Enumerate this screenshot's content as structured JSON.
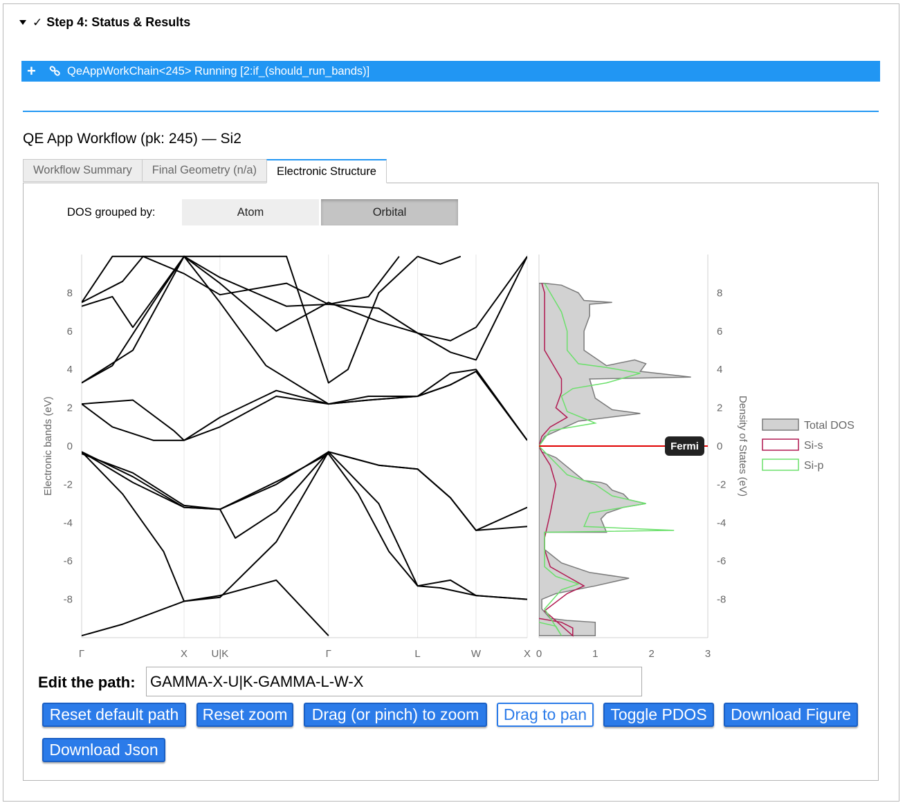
{
  "step": {
    "title": "Step 4: Status & Results",
    "check": "✓"
  },
  "workchain_bar": {
    "plus": "+",
    "text": "QeAppWorkChain<245> Running [2:if_(should_run_bands)]"
  },
  "workflow_title": "QE App Workflow (pk: 245) — Si2",
  "tabs": [
    {
      "label": "Workflow Summary",
      "active": false
    },
    {
      "label": "Final Geometry (n/a)",
      "active": false
    },
    {
      "label": "Electronic Structure",
      "active": true
    }
  ],
  "dos_group": {
    "label": "DOS grouped by:",
    "options": [
      "Atom",
      "Orbital"
    ],
    "selected": "Orbital"
  },
  "chart_data": [
    {
      "type": "line",
      "ylabel": "Electronic bands (eV)",
      "ylim": [
        -10,
        10
      ],
      "y_ticks": [
        8,
        6,
        4,
        2,
        0,
        -2,
        -4,
        -6,
        -8
      ],
      "x_ticks": [
        "Γ",
        "X",
        "U|K",
        "Γ",
        "L",
        "W",
        "X"
      ],
      "x_tick_positions": [
        0,
        1.0,
        1.35,
        2.41,
        3.28,
        3.85,
        4.35
      ],
      "series_color": "#000000",
      "bands": [
        [
          [
            0,
            -9.9
          ],
          [
            0.4,
            -9.3
          ],
          [
            1.0,
            -8.1
          ],
          [
            1.35,
            -7.8
          ],
          [
            1.9,
            -7.0
          ],
          [
            2.41,
            -9.9
          ]
        ],
        [
          [
            0,
            -0.3
          ],
          [
            0.5,
            -1.9
          ],
          [
            1.0,
            -3.2
          ],
          [
            1.35,
            -3.3
          ],
          [
            1.9,
            -2.0
          ],
          [
            2.41,
            -0.3
          ],
          [
            2.9,
            -1.0
          ],
          [
            3.28,
            -1.2
          ],
          [
            3.6,
            -2.7
          ],
          [
            3.85,
            -4.4
          ],
          [
            4.35,
            -4.2
          ]
        ],
        [
          [
            0,
            -0.3
          ],
          [
            0.4,
            -2.5
          ],
          [
            0.8,
            -5.5
          ],
          [
            1.0,
            -8.1
          ],
          [
            1.35,
            -7.9
          ],
          [
            1.9,
            -5.0
          ],
          [
            2.41,
            -0.3
          ],
          [
            2.9,
            -3.0
          ],
          [
            3.28,
            -7.3
          ],
          [
            3.6,
            -7.0
          ],
          [
            3.85,
            -7.8
          ],
          [
            4.35,
            -8.0
          ]
        ],
        [
          [
            0,
            -0.3
          ],
          [
            0.5,
            -1.6
          ],
          [
            1.0,
            -3.2
          ],
          [
            1.35,
            -3.3
          ],
          [
            1.5,
            -4.8
          ],
          [
            1.9,
            -3.4
          ],
          [
            2.41,
            -0.3
          ],
          [
            2.9,
            -1.0
          ],
          [
            3.28,
            -1.2
          ],
          [
            3.6,
            -2.7
          ],
          [
            3.85,
            -4.4
          ],
          [
            4.35,
            -3.2
          ]
        ],
        [
          [
            0,
            -0.4
          ],
          [
            0.5,
            -1.4
          ],
          [
            1.0,
            -3.1
          ],
          [
            1.35,
            -3.3
          ],
          [
            2.0,
            -1.6
          ],
          [
            2.41,
            -0.4
          ],
          [
            2.7,
            -2.5
          ],
          [
            3.0,
            -5.5
          ],
          [
            3.28,
            -7.3
          ],
          [
            3.5,
            -7.4
          ],
          [
            3.85,
            -7.8
          ],
          [
            4.35,
            -8.0
          ]
        ],
        [
          [
            0,
            2.2
          ],
          [
            0.3,
            1.0
          ],
          [
            0.7,
            0.3
          ],
          [
            1.0,
            0.3
          ],
          [
            1.35,
            1.0
          ],
          [
            1.9,
            2.6
          ],
          [
            2.41,
            2.2
          ],
          [
            2.8,
            2.4
          ],
          [
            3.28,
            2.6
          ],
          [
            3.6,
            3.2
          ],
          [
            3.85,
            3.9
          ],
          [
            4.35,
            0.3
          ]
        ],
        [
          [
            0,
            2.2
          ],
          [
            0.5,
            2.4
          ],
          [
            0.9,
            0.8
          ],
          [
            1.0,
            0.3
          ],
          [
            1.35,
            1.5
          ],
          [
            1.9,
            2.9
          ],
          [
            2.41,
            2.2
          ],
          [
            2.8,
            2.4
          ],
          [
            3.28,
            2.6
          ],
          [
            3.6,
            3.2
          ],
          [
            3.85,
            3.9
          ],
          [
            4.35,
            0.3
          ]
        ],
        [
          [
            0,
            3.3
          ],
          [
            0.3,
            4.2
          ],
          [
            0.7,
            7.5
          ],
          [
            1.0,
            9.9
          ],
          [
            1.35,
            7.5
          ],
          [
            1.8,
            4.2
          ],
          [
            2.41,
            2.2
          ],
          [
            2.8,
            2.6
          ],
          [
            3.28,
            2.6
          ],
          [
            3.6,
            3.8
          ],
          [
            3.85,
            4.0
          ],
          [
            4.35,
            0.3
          ]
        ],
        [
          [
            0,
            3.3
          ],
          [
            0.5,
            5.0
          ],
          [
            1.0,
            9.9
          ],
          [
            1.35,
            8.5
          ],
          [
            1.9,
            6.0
          ],
          [
            2.41,
            7.5
          ],
          [
            2.9,
            6.5
          ],
          [
            3.28,
            5.9
          ],
          [
            3.6,
            4.9
          ],
          [
            3.85,
            4.5
          ],
          [
            4.35,
            9.9
          ]
        ],
        [
          [
            0,
            7.3
          ],
          [
            0.3,
            7.8
          ],
          [
            0.5,
            6.2
          ],
          [
            1.0,
            9.9
          ],
          [
            1.35,
            8.8
          ],
          [
            2.0,
            7.3
          ],
          [
            2.41,
            7.4
          ],
          [
            2.9,
            7.2
          ],
          [
            3.28,
            5.9
          ],
          [
            3.6,
            5.5
          ],
          [
            3.85,
            6.2
          ],
          [
            4.35,
            9.9
          ]
        ],
        [
          [
            0,
            7.5
          ],
          [
            0.4,
            8.6
          ],
          [
            0.6,
            9.9
          ],
          [
            1.0,
            9.0
          ],
          [
            1.35,
            7.9
          ],
          [
            2.0,
            8.5
          ],
          [
            2.41,
            7.4
          ],
          [
            2.8,
            7.8
          ],
          [
            3.1,
            9.9
          ]
        ],
        [
          [
            0,
            7.5
          ],
          [
            0.3,
            9.9
          ],
          [
            1.0,
            9.9
          ],
          [
            1.35,
            9.9
          ],
          [
            2.0,
            9.9
          ],
          [
            2.41,
            3.3
          ],
          [
            2.6,
            4.0
          ],
          [
            2.9,
            8.0
          ],
          [
            3.28,
            9.9
          ]
        ],
        [
          [
            3.28,
            9.9
          ],
          [
            3.5,
            9.5
          ],
          [
            3.7,
            9.9
          ]
        ]
      ]
    },
    {
      "type": "area",
      "ylabel": "Density of States (eV)",
      "xlim": [
        0,
        3
      ],
      "x_ticks": [
        0,
        1,
        2,
        3
      ],
      "y_ticks": [
        8,
        6,
        4,
        2,
        0,
        -2,
        -4,
        -6,
        -8
      ],
      "fermi_label": "Fermi",
      "fermi_energy": 0,
      "series": [
        {
          "name": "Total DOS",
          "fill": "#d2d2d2",
          "stroke": "#7a7a7a",
          "points": [
            [
              0,
              -9.9
            ],
            [
              1.0,
              -9.9
            ],
            [
              1.0,
              -9.2
            ],
            [
              0.5,
              -9.1
            ],
            [
              0.2,
              -9.0
            ],
            [
              0.05,
              -8.5
            ],
            [
              0.05,
              -8.0
            ],
            [
              0.3,
              -7.7
            ],
            [
              1.0,
              -7.3
            ],
            [
              1.6,
              -6.9
            ],
            [
              0.9,
              -6.6
            ],
            [
              0.4,
              -6.1
            ],
            [
              0.1,
              -5.4
            ],
            [
              0.1,
              -4.5
            ],
            [
              1.2,
              -4.5
            ],
            [
              1.1,
              -3.8
            ],
            [
              1.2,
              -3.5
            ],
            [
              1.5,
              -3.2
            ],
            [
              1.9,
              -3.0
            ],
            [
              1.6,
              -2.8
            ],
            [
              1.5,
              -2.5
            ],
            [
              1.3,
              -2.3
            ],
            [
              1.2,
              -2.0
            ],
            [
              1.1,
              -1.9
            ],
            [
              0.8,
              -1.8
            ],
            [
              0.3,
              -0.6
            ],
            [
              0.05,
              -0.3
            ],
            [
              0.0,
              0.0
            ],
            [
              0.1,
              0.5
            ],
            [
              0.7,
              1.3
            ],
            [
              1.8,
              1.7
            ],
            [
              1.3,
              1.9
            ],
            [
              1.0,
              2.5
            ],
            [
              0.9,
              3.5
            ],
            [
              2.7,
              3.6
            ],
            [
              1.8,
              3.9
            ],
            [
              1.9,
              4.3
            ],
            [
              1.7,
              4.5
            ],
            [
              1.2,
              4.2
            ],
            [
              0.8,
              5.0
            ],
            [
              0.8,
              6.0
            ],
            [
              0.9,
              6.8
            ],
            [
              0.9,
              7.4
            ],
            [
              1.3,
              7.5
            ],
            [
              0.8,
              7.6
            ],
            [
              0.7,
              8.0
            ],
            [
              0.4,
              8.4
            ],
            [
              0.1,
              8.5
            ],
            [
              0.0,
              8.5
            ]
          ]
        },
        {
          "name": "Si-s",
          "stroke": "#b01850",
          "points": [
            [
              0,
              -9.0
            ],
            [
              0.4,
              -9.2
            ],
            [
              0.6,
              -9.5
            ],
            [
              0.6,
              -9.9
            ],
            [
              0.1,
              -8.6
            ],
            [
              0.5,
              -7.7
            ],
            [
              0.8,
              -7.3
            ],
            [
              0.5,
              -6.8
            ],
            [
              0.2,
              -6.3
            ],
            [
              0.1,
              -5.4
            ],
            [
              0.1,
              -4.8
            ],
            [
              0.2,
              -3.5
            ],
            [
              0.3,
              -2.0
            ],
            [
              0.2,
              -1.0
            ],
            [
              0.05,
              -0.3
            ],
            [
              0,
              0
            ],
            [
              0.05,
              0.5
            ],
            [
              0.2,
              1.0
            ],
            [
              0.5,
              1.5
            ],
            [
              0.3,
              2.0
            ],
            [
              0.4,
              2.8
            ],
            [
              0.4,
              3.5
            ],
            [
              0.3,
              4.0
            ],
            [
              0.2,
              4.5
            ],
            [
              0.1,
              5.0
            ],
            [
              0.1,
              6.0
            ],
            [
              0.1,
              7.0
            ],
            [
              0.1,
              8.0
            ],
            [
              0.05,
              8.5
            ]
          ]
        },
        {
          "name": "Si-p",
          "stroke": "#6be06b",
          "points": [
            [
              0,
              -9.2
            ],
            [
              0.3,
              -9.4
            ],
            [
              0.4,
              -9.9
            ],
            [
              0.1,
              -8.5
            ],
            [
              0.4,
              -7.5
            ],
            [
              0.7,
              -7.2
            ],
            [
              0.3,
              -6.8
            ],
            [
              0.1,
              -6.3
            ],
            [
              0.1,
              -4.5
            ],
            [
              2.4,
              -4.4
            ],
            [
              0.8,
              -4.2
            ],
            [
              0.9,
              -3.5
            ],
            [
              1.9,
              -3.0
            ],
            [
              1.3,
              -2.6
            ],
            [
              1.0,
              -2.0
            ],
            [
              0.5,
              -1.5
            ],
            [
              0.2,
              -0.6
            ],
            [
              0,
              0
            ],
            [
              0.2,
              0.8
            ],
            [
              1.0,
              1.2
            ],
            [
              0.5,
              1.8
            ],
            [
              0.4,
              2.6
            ],
            [
              0.6,
              3.0
            ],
            [
              1.2,
              3.3
            ],
            [
              1.8,
              3.8
            ],
            [
              1.2,
              4.1
            ],
            [
              0.7,
              4.3
            ],
            [
              0.5,
              5.0
            ],
            [
              0.5,
              6.0
            ],
            [
              0.4,
              7.0
            ],
            [
              0.3,
              7.5
            ],
            [
              0.1,
              8.5
            ]
          ]
        }
      ]
    }
  ],
  "path": {
    "label": "Edit the path:",
    "value": "GAMMA-X-U|K-GAMMA-L-W-X"
  },
  "buttons": {
    "reset_path": "Reset default path",
    "reset_zoom": "Reset zoom",
    "drag_zoom": "Drag (or pinch) to zoom",
    "drag_pan": "Drag to pan",
    "toggle_pdos": "Toggle PDOS",
    "download_figure": "Download Figure",
    "download_json": "Download Json"
  },
  "colors": {
    "accent": "#2196f3",
    "button": "#2b7be9",
    "fermi": "#e00000"
  }
}
